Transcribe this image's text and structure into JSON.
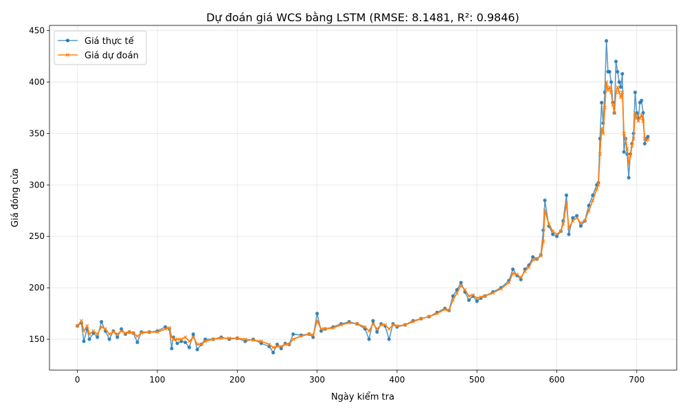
{
  "chart_data": {
    "type": "line",
    "title": "Dự đoán giá WCS bằng LSTM (RMSE: 8.1481, R²: 0.9846)",
    "xlabel": "Ngày kiểm tra",
    "ylabel": "Giá đóng cửa",
    "xlim": [
      -35,
      750
    ],
    "ylim": [
      120,
      455
    ],
    "xticks": [
      0,
      100,
      200,
      300,
      400,
      500,
      600,
      700
    ],
    "yticks": [
      150,
      200,
      250,
      300,
      350,
      400,
      450
    ],
    "grid": true,
    "legend": "top-left",
    "series": [
      {
        "name": "Giá thực tế",
        "color": "#1f77b4",
        "marker": "circle",
        "x": [
          0,
          5,
          8,
          12,
          15,
          20,
          25,
          30,
          35,
          40,
          45,
          50,
          55,
          60,
          65,
          70,
          75,
          80,
          90,
          100,
          110,
          115,
          118,
          120,
          125,
          130,
          135,
          140,
          145,
          150,
          155,
          160,
          170,
          180,
          190,
          200,
          210,
          220,
          230,
          240,
          245,
          250,
          255,
          260,
          265,
          270,
          280,
          290,
          295,
          300,
          305,
          310,
          320,
          330,
          340,
          350,
          360,
          365,
          370,
          375,
          380,
          385,
          390,
          395,
          400,
          410,
          420,
          430,
          440,
          450,
          460,
          465,
          470,
          475,
          480,
          485,
          490,
          495,
          500,
          505,
          510,
          520,
          530,
          540,
          545,
          550,
          555,
          560,
          565,
          570,
          575,
          580,
          583,
          585,
          590,
          595,
          600,
          605,
          608,
          612,
          615,
          620,
          625,
          630,
          635,
          640,
          645,
          650,
          652,
          654,
          656,
          658,
          660,
          662,
          664,
          666,
          668,
          670,
          672,
          674,
          676,
          678,
          680,
          682,
          684,
          686,
          688,
          690,
          692,
          694,
          696,
          698,
          700,
          702,
          704,
          706,
          708,
          710,
          712,
          714
        ],
        "y": [
          163,
          166,
          148,
          160,
          150,
          156,
          152,
          167,
          158,
          150,
          158,
          152,
          160,
          155,
          157,
          156,
          147,
          157,
          157,
          158,
          162,
          160,
          141,
          152,
          146,
          148,
          147,
          142,
          155,
          140,
          145,
          150,
          150,
          152,
          150,
          151,
          148,
          150,
          146,
          143,
          137,
          145,
          141,
          146,
          145,
          155,
          154,
          155,
          152,
          175,
          158,
          160,
          162,
          165,
          167,
          165,
          160,
          150,
          168,
          157,
          165,
          163,
          150,
          165,
          162,
          164,
          168,
          170,
          172,
          176,
          180,
          178,
          192,
          198,
          205,
          196,
          188,
          192,
          187,
          190,
          192,
          196,
          200,
          207,
          218,
          212,
          208,
          218,
          222,
          230,
          228,
          232,
          256,
          285,
          260,
          252,
          250,
          255,
          265,
          290,
          252,
          268,
          270,
          260,
          265,
          280,
          290,
          300,
          302,
          345,
          380,
          360,
          390,
          440,
          410,
          410,
          400,
          380,
          370,
          420,
          410,
          400,
          395,
          408,
          332,
          345,
          330,
          307,
          330,
          340,
          350,
          390,
          370,
          365,
          380,
          382,
          370,
          340,
          345,
          347
        ]
      },
      {
        "name": "Giá dự đoán",
        "color": "#ff7f0e",
        "marker": "x",
        "x": [
          0,
          5,
          8,
          12,
          15,
          20,
          25,
          30,
          35,
          40,
          45,
          50,
          55,
          60,
          65,
          70,
          75,
          80,
          90,
          100,
          110,
          115,
          118,
          120,
          125,
          130,
          135,
          140,
          145,
          150,
          155,
          160,
          170,
          180,
          190,
          200,
          210,
          220,
          230,
          240,
          245,
          250,
          255,
          260,
          265,
          270,
          280,
          290,
          295,
          300,
          305,
          310,
          320,
          330,
          340,
          350,
          360,
          365,
          370,
          375,
          380,
          385,
          390,
          395,
          400,
          410,
          420,
          430,
          440,
          450,
          460,
          465,
          470,
          475,
          480,
          485,
          490,
          495,
          500,
          505,
          510,
          520,
          530,
          540,
          545,
          550,
          555,
          560,
          565,
          570,
          575,
          580,
          583,
          585,
          590,
          595,
          600,
          605,
          608,
          612,
          615,
          620,
          625,
          630,
          635,
          640,
          645,
          650,
          652,
          654,
          656,
          658,
          660,
          662,
          664,
          666,
          668,
          670,
          672,
          674,
          676,
          678,
          680,
          682,
          684,
          686,
          688,
          690,
          692,
          694,
          696,
          698,
          700,
          702,
          704,
          706,
          708,
          710,
          712,
          714
        ],
        "y": [
          163,
          168,
          158,
          163,
          155,
          158,
          155,
          162,
          160,
          155,
          157,
          155,
          158,
          156,
          157,
          156,
          153,
          156,
          157,
          157,
          160,
          161,
          152,
          150,
          150,
          150,
          152,
          148,
          152,
          145,
          145,
          148,
          150,
          151,
          151,
          151,
          150,
          149,
          148,
          145,
          142,
          143,
          143,
          145,
          145,
          150,
          153,
          155,
          154,
          168,
          160,
          160,
          161,
          164,
          166,
          165,
          162,
          158,
          165,
          160,
          164,
          164,
          160,
          164,
          163,
          164,
          167,
          170,
          172,
          175,
          179,
          178,
          188,
          195,
          202,
          198,
          192,
          193,
          190,
          191,
          192,
          195,
          199,
          205,
          214,
          213,
          210,
          216,
          220,
          227,
          228,
          231,
          245,
          275,
          262,
          255,
          252,
          255,
          262,
          282,
          258,
          265,
          268,
          263,
          265,
          275,
          285,
          296,
          300,
          330,
          355,
          350,
          375,
          400,
          392,
          395,
          390,
          378,
          370,
          390,
          395,
          390,
          385,
          390,
          350,
          345,
          335,
          320,
          328,
          338,
          345,
          370,
          365,
          362,
          365,
          368,
          362,
          345,
          343,
          344
        ]
      }
    ]
  }
}
